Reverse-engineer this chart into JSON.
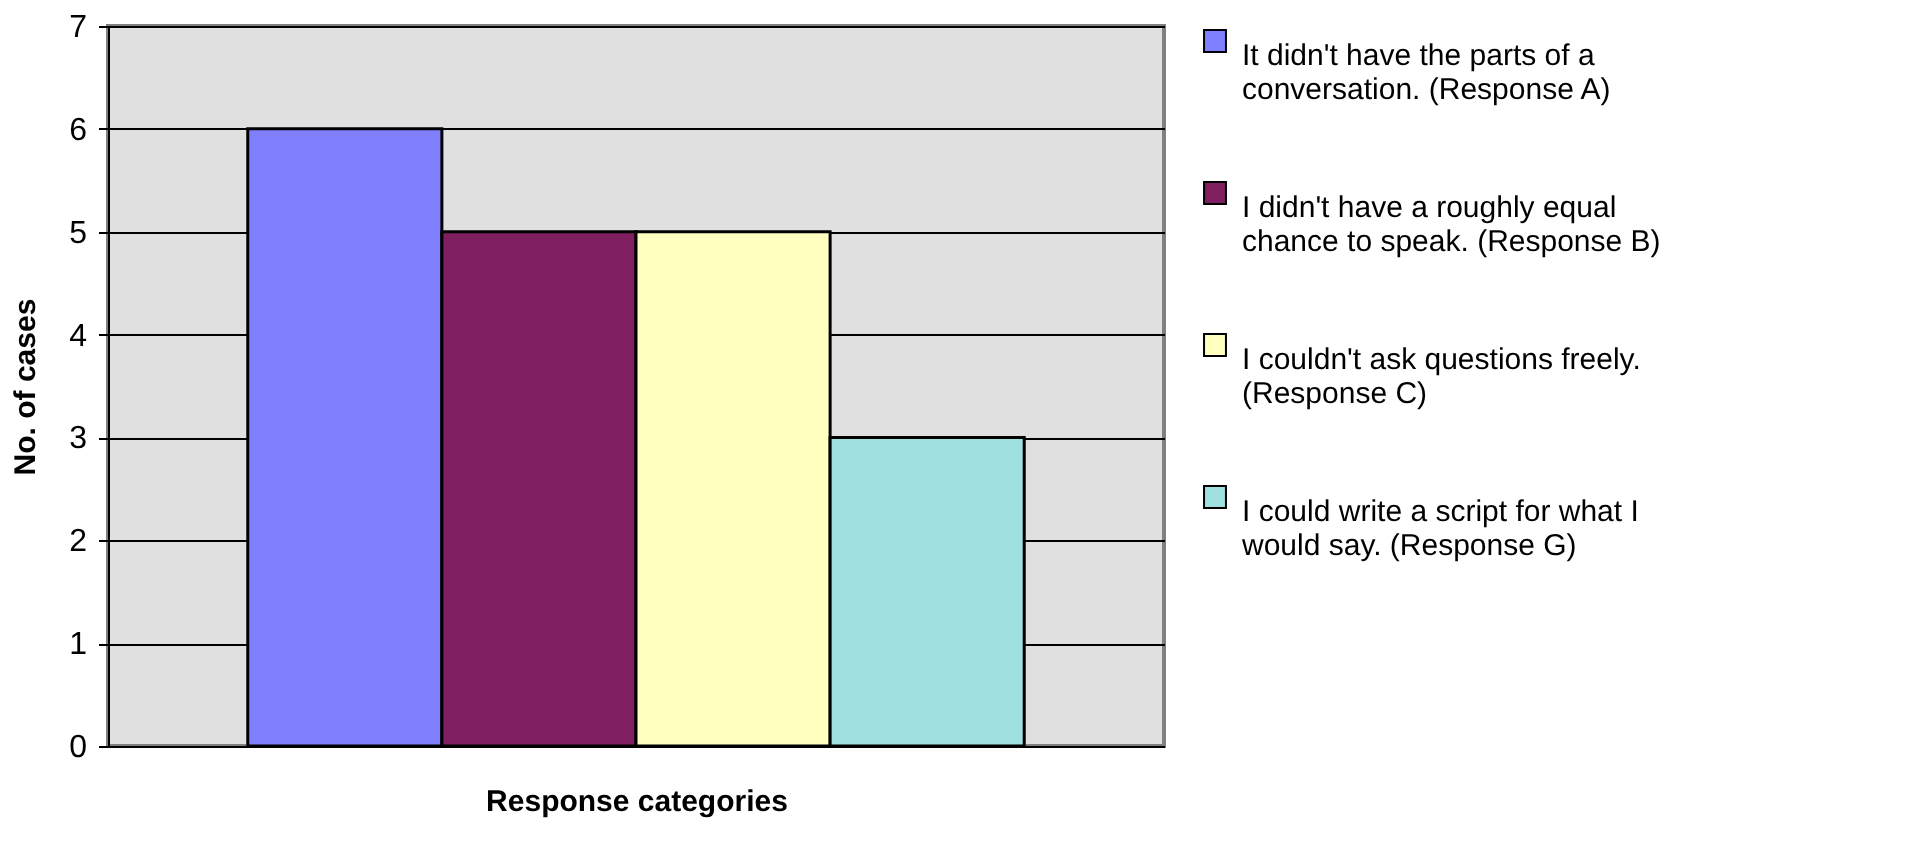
{
  "chart_data": {
    "type": "bar",
    "xlabel": "Response categories",
    "ylabel": "No. of cases",
    "categories": [
      null
    ],
    "series": [
      {
        "name": "It didn't have the parts of a conversation. (Response A)",
        "color": "#8080ff",
        "values": [
          6
        ]
      },
      {
        "name": "I didn't have a roughly equal chance to speak. (Response B)",
        "color": "#7f1f5f",
        "values": [
          5
        ]
      },
      {
        "name": "I couldn't ask questions freely. (Response C)",
        "color": "#ffffc0",
        "values": [
          5
        ]
      },
      {
        "name": "I could write a script for what I would say. (Response G)",
        "color": "#a0e0e0",
        "values": [
          3
        ]
      }
    ],
    "ylim": [
      0,
      7
    ],
    "yticks": [
      0,
      1,
      2,
      3,
      4,
      5,
      6,
      7
    ],
    "grid": "y",
    "legend": "right",
    "tick_labels": "y"
  }
}
